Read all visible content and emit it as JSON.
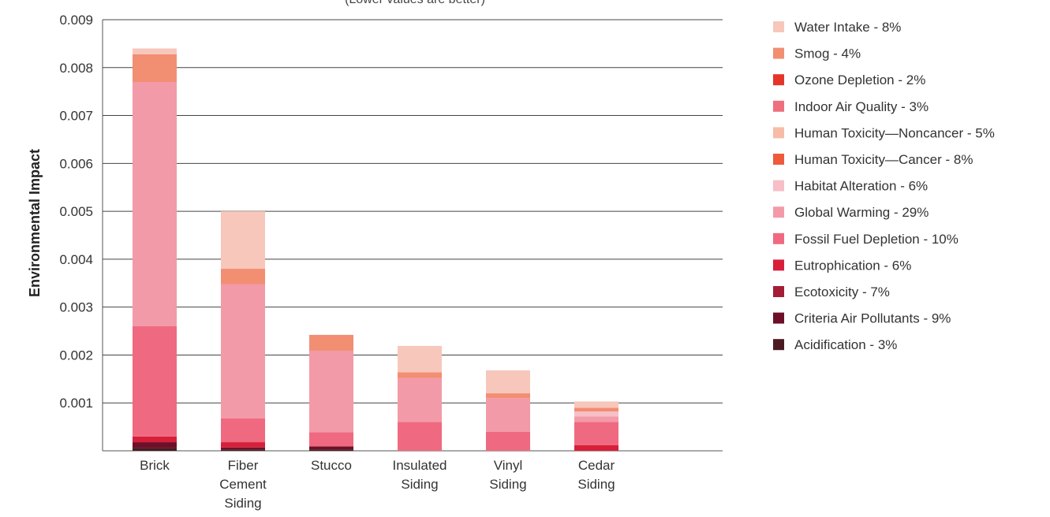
{
  "chart_data": {
    "type": "bar",
    "stacked": true,
    "subtitle": "(Lower values are better)",
    "ylabel": "Environmental Impact",
    "xlabel": "",
    "ylim": [
      0,
      0.009
    ],
    "yticks": [
      "0.001",
      "0.002",
      "0.003",
      "0.004",
      "0.005",
      "0.006",
      "0.007",
      "0.008",
      "0.009"
    ],
    "grid": true,
    "legend_position": "right",
    "categories": [
      [
        "Brick"
      ],
      [
        "Fiber",
        "Cement",
        "Siding"
      ],
      [
        "Stucco"
      ],
      [
        "Insulated",
        "Siding"
      ],
      [
        "Vinyl",
        "Siding"
      ],
      [
        "Cedar",
        "Siding"
      ]
    ],
    "series": [
      {
        "name": "Acidification - 3%",
        "color": "#4a1a22",
        "values": [
          6e-05,
          3e-05,
          3e-05,
          0,
          0,
          0
        ]
      },
      {
        "name": "Criteria Air Pollutants - 9%",
        "color": "#6e0f28",
        "values": [
          0.00012,
          4e-05,
          6e-05,
          0,
          0,
          0
        ]
      },
      {
        "name": "Ecotoxicity - 7%",
        "color": "#a31d35",
        "values": [
          0,
          0,
          0,
          0,
          0,
          0
        ]
      },
      {
        "name": "Eutrophication - 6%",
        "color": "#d81f3a",
        "values": [
          0.00012,
          0.00011,
          0,
          0,
          0,
          0.00012
        ]
      },
      {
        "name": "Fossil Fuel Depletion - 10%",
        "color": "#ef6a80",
        "values": [
          0.0023,
          0.0005,
          0.0003,
          0.0006,
          0.0004,
          0.00048
        ]
      },
      {
        "name": "Global Warming - 29%",
        "color": "#f39aa8",
        "values": [
          0.0051,
          0.0028,
          0.0017,
          0.00092,
          0.0007,
          0.00012
        ]
      },
      {
        "name": "Habitat Alteration - 6%",
        "color": "#f7bfc8",
        "values": [
          0,
          0,
          0,
          0,
          0,
          0.0001
        ]
      },
      {
        "name": "Human Toxicity—Cancer - 8%",
        "color": "#ee5a3c",
        "values": [
          0,
          0,
          0,
          0,
          0,
          0
        ]
      },
      {
        "name": "Human Toxicity—Noncancer - 5%",
        "color": "#f6bca8",
        "values": [
          0,
          0,
          0,
          0,
          0,
          0
        ]
      },
      {
        "name": "Indoor Air Quality - 3%",
        "color": "#ee6f7e",
        "values": [
          0,
          0,
          0,
          0,
          0,
          0
        ]
      },
      {
        "name": "Ozone Depletion - 2%",
        "color": "#e5352a",
        "values": [
          0,
          0,
          0,
          0,
          0,
          0
        ]
      },
      {
        "name": "Smog - 4%",
        "color": "#f28e72",
        "values": [
          0.00058,
          0.00032,
          0.00033,
          0.00012,
          0.0001,
          8e-05
        ]
      },
      {
        "name": "Water Intake - 8%",
        "color": "#f7c7bc",
        "values": [
          0.00012,
          0.0012,
          0,
          0.00055,
          0.00048,
          0.00013
        ]
      }
    ]
  }
}
